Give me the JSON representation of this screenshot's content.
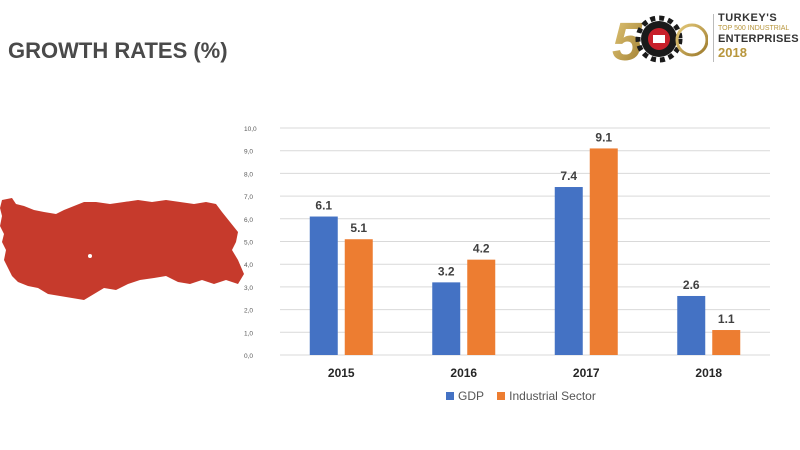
{
  "header": {
    "title": "GROWTH RATES (%)"
  },
  "logo": {
    "numeral": "500",
    "line1": "TURKEY'S",
    "line2": "TOP 500 INDUSTRIAL",
    "line3": "ENTERPRISES",
    "line4": "2018"
  },
  "colors": {
    "gdp": "#4472C4",
    "industrial": "#ED7D31",
    "map": "#C63A2C",
    "gold": "#B8963C"
  },
  "chart_data": {
    "type": "bar",
    "categories": [
      "2015",
      "2016",
      "2017",
      "2018"
    ],
    "series": [
      {
        "name": "GDP",
        "values": [
          6.1,
          3.2,
          7.4,
          2.6
        ]
      },
      {
        "name": "Industrial Sector",
        "values": [
          5.1,
          4.2,
          9.1,
          1.1
        ]
      }
    ],
    "y_ticks": [
      "0,0",
      "1,0",
      "2,0",
      "3,0",
      "4,0",
      "5,0",
      "6,0",
      "7,0",
      "8,0",
      "9,0",
      "10,0"
    ],
    "ylim": [
      0,
      10
    ],
    "grid": true,
    "legend_position": "bottom"
  }
}
